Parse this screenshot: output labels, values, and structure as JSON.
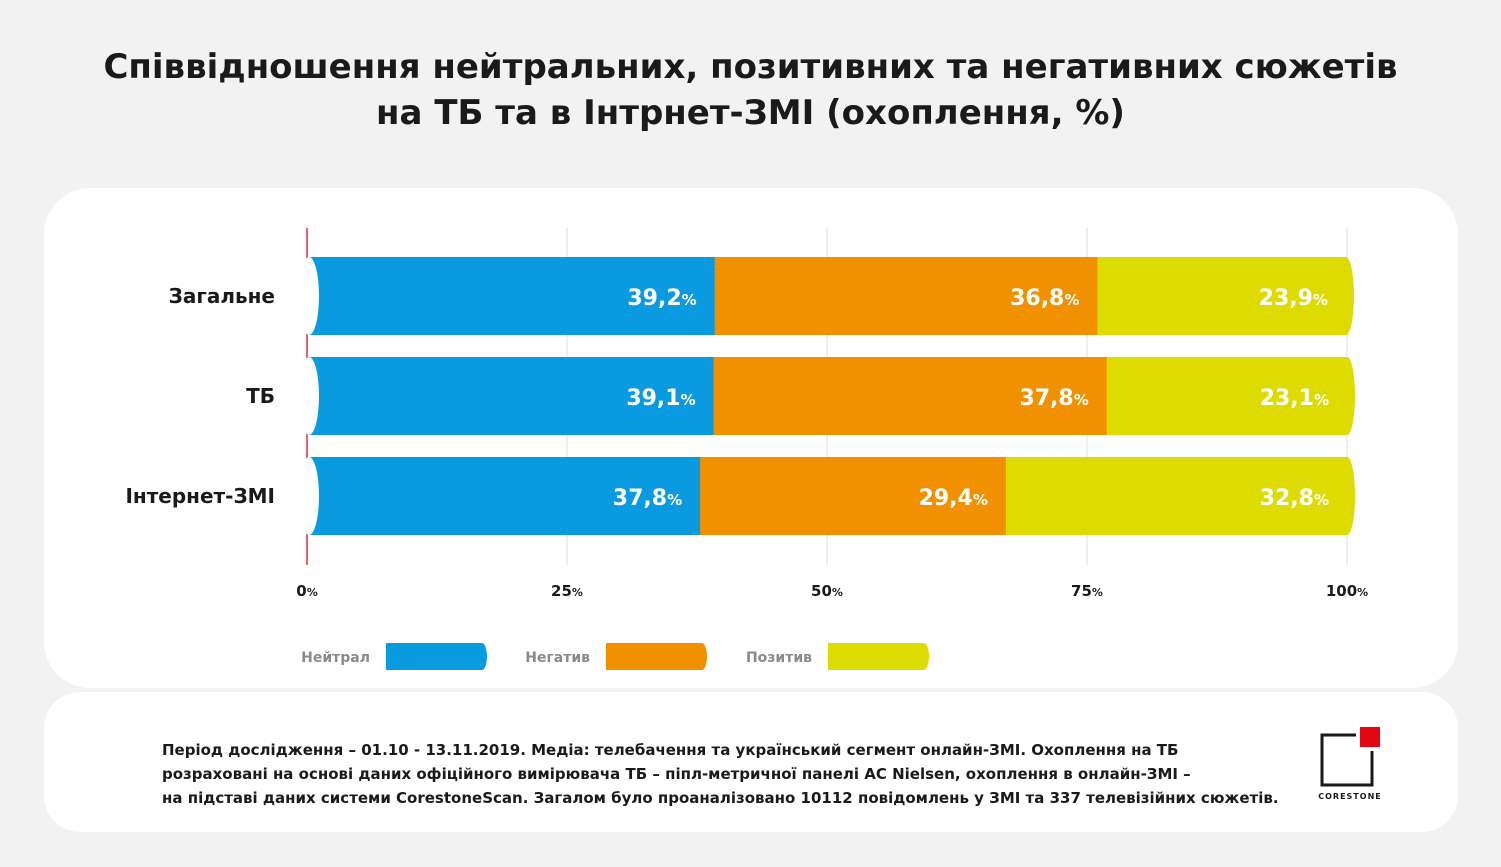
{
  "title": {
    "line1": "Співвідношення нейтральних, позитивних та негативних сюжетів",
    "line2": "на ТБ та в Інтрнет-ЗМІ (охоплення, %)"
  },
  "colors": {
    "neutral": "#0a9ae0",
    "negative": "#f29100",
    "positive": "#dedb00",
    "axis_zero": "#e0303a",
    "grid": "#dcdcdc",
    "logo_red": "#e30613"
  },
  "chart_data": {
    "type": "bar",
    "orientation": "horizontal",
    "stacked": true,
    "categories": [
      "Загальне",
      "ТБ",
      "Інтернет-ЗМІ"
    ],
    "series": [
      {
        "name": "Нейтрал",
        "values": [
          39.2,
          39.1,
          37.8
        ],
        "labels": [
          "39,2",
          "39,1",
          "37,8"
        ],
        "color": "#0a9ae0"
      },
      {
        "name": "Негатив",
        "values": [
          36.8,
          37.8,
          29.4
        ],
        "labels": [
          "36,8",
          "37,8",
          "29,4"
        ],
        "color": "#f29100"
      },
      {
        "name": "Позитив",
        "values": [
          23.9,
          23.1,
          32.8
        ],
        "labels": [
          "23,9",
          "23,1",
          "32,8"
        ],
        "color": "#dedb00"
      }
    ],
    "label_unit": "%",
    "xlim": [
      0,
      100
    ],
    "xticks": [
      0,
      25,
      50,
      75,
      100
    ],
    "xtick_labels": [
      "0",
      "25",
      "50",
      "75",
      "100"
    ],
    "xtick_unit": "%",
    "grid": true,
    "legend_position": "bottom"
  },
  "footer": {
    "line1": "Період дослідження – 01.10 - 13.11.2019. Медіа: телебачення та український сегмент онлайн-ЗМІ. Охоплення на ТБ",
    "line2": "розраховані на основі даних офіційного вимірювача ТБ – піпл-метричної панелі AC Nielsen, охоплення в онлайн-ЗМІ –",
    "line3": "на підставі даних системи CorestoneScan. Загалом було проаналізовано 10112 повідомлень у ЗМІ та 337 телевізійних сюжетів."
  },
  "logo": {
    "text": "CORESTONE"
  }
}
